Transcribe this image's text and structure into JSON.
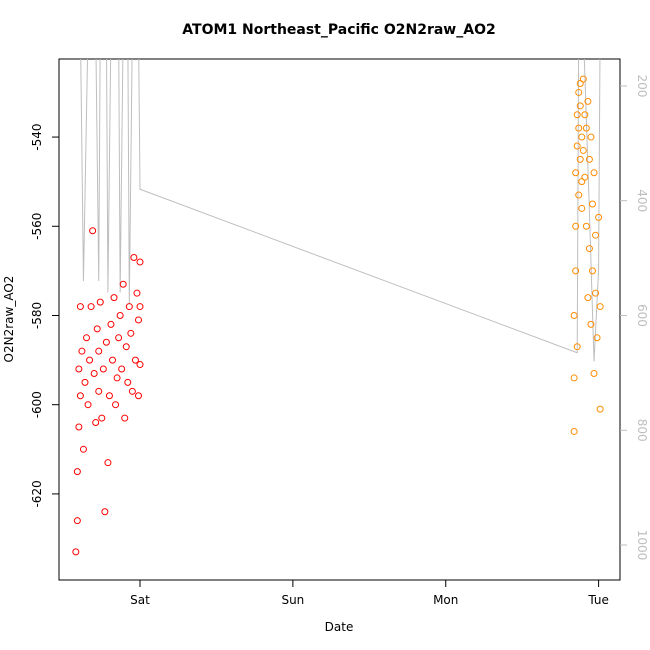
{
  "chart_data": {
    "type": "scatter",
    "title": "ATOM1 Northeast_Pacific O2N2raw_AO2",
    "x_label": "Date",
    "y_label": "O2N2raw_AO2",
    "xlim": [
      -0.53,
      3.14
    ],
    "xticks": [
      {
        "value": 0,
        "label": "Sat"
      },
      {
        "value": 1,
        "label": "Sun"
      },
      {
        "value": 2,
        "label": "Mon"
      },
      {
        "value": 3,
        "label": "Tue"
      }
    ],
    "ylim": [
      -639.3,
      -522.5
    ],
    "yticks": [
      -620,
      -600,
      -580,
      -560,
      -540
    ],
    "y2lim": [
      1061,
      153
    ],
    "y2ticks": [
      200,
      400,
      600,
      800,
      1000
    ],
    "y2_color": "#bebebe",
    "series": [
      {
        "type": "line",
        "axis": "y2",
        "color": "#bebebe",
        "x": [
          -0.39,
          -0.37,
          -0.34,
          -0.29,
          -0.27,
          -0.26,
          -0.22,
          -0.21,
          -0.19,
          -0.14,
          -0.13,
          -0.11,
          -0.08,
          -0.07,
          -0.05,
          -0.01,
          0.0,
          2.86,
          2.87,
          2.9,
          2.94,
          2.97,
          3.0,
          3.01
        ],
        "values": [
          100,
          540,
          100,
          100,
          540,
          100,
          100,
          560,
          100,
          100,
          560,
          100,
          100,
          580,
          100,
          100,
          380,
          665,
          100,
          100,
          420,
          680,
          520,
          100
        ]
      },
      {
        "type": "scatter",
        "color": "#ff0000",
        "x": [
          -0.42,
          -0.41,
          -0.41,
          -0.4,
          -0.4,
          -0.39,
          -0.39,
          -0.38,
          -0.37,
          -0.36,
          -0.35,
          -0.34,
          -0.33,
          -0.32,
          -0.31,
          -0.3,
          -0.29,
          -0.28,
          -0.27,
          -0.27,
          -0.26,
          -0.25,
          -0.24,
          -0.23,
          -0.22,
          -0.21,
          -0.2,
          -0.19,
          -0.18,
          -0.17,
          -0.16,
          -0.15,
          -0.14,
          -0.13,
          -0.12,
          -0.11,
          -0.1,
          -0.09,
          -0.08,
          -0.07,
          -0.06,
          -0.05,
          -0.04,
          -0.03,
          -0.02,
          -0.01,
          -0.01,
          0.0,
          0.0,
          0.0
        ],
        "values": [
          -633,
          -626,
          -615,
          -605,
          -592,
          -578,
          -598,
          -588,
          -610,
          -595,
          -585,
          -600,
          -590,
          -578,
          -561,
          -593,
          -604,
          -583,
          -597,
          -588,
          -577,
          -603,
          -592,
          -624,
          -586,
          -613,
          -598,
          -582,
          -590,
          -576,
          -600,
          -594,
          -585,
          -580,
          -592,
          -573,
          -603,
          -587,
          -595,
          -578,
          -584,
          -597,
          -567,
          -590,
          -575,
          -598,
          -581,
          -568,
          -591,
          -578
        ]
      },
      {
        "type": "scatter",
        "color": "#ff8c00",
        "x": [
          2.84,
          2.84,
          2.84,
          2.85,
          2.85,
          2.85,
          2.86,
          2.86,
          2.86,
          2.87,
          2.87,
          2.87,
          2.88,
          2.88,
          2.88,
          2.89,
          2.89,
          2.89,
          2.9,
          2.9,
          2.91,
          2.91,
          2.92,
          2.92,
          2.93,
          2.93,
          2.94,
          2.94,
          2.95,
          2.95,
          2.96,
          2.96,
          2.97,
          2.97,
          2.98,
          2.98,
          2.99,
          3.0,
          3.01,
          3.01
        ],
        "values": [
          -606,
          -594,
          -580,
          -570,
          -560,
          -548,
          -535,
          -587,
          -542,
          -530,
          -553,
          -538,
          -528,
          -545,
          -533,
          -550,
          -540,
          -556,
          -527,
          -543,
          -535,
          -549,
          -560,
          -538,
          -532,
          -576,
          -545,
          -565,
          -540,
          -582,
          -555,
          -570,
          -548,
          -593,
          -562,
          -575,
          -585,
          -558,
          -601,
          -578
        ]
      }
    ]
  }
}
